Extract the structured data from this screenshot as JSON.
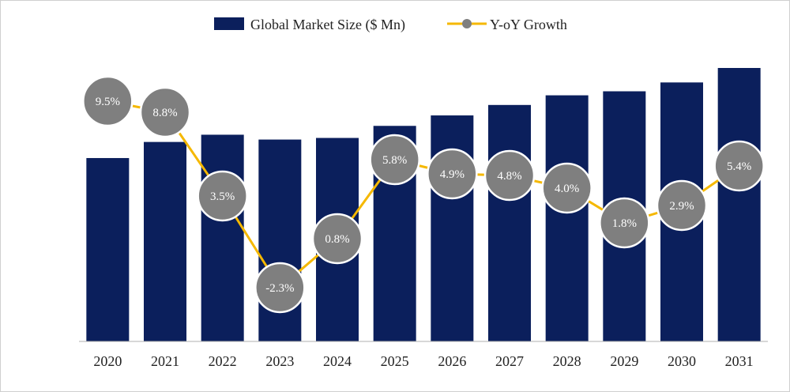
{
  "colors": {
    "bar": "#0b1f5c",
    "line": "#f5b800",
    "marker": "#7f7f7f",
    "marker_stroke": "#ffffff",
    "axis": "#b0b0b0"
  },
  "legend": [
    {
      "label": "Global Market Size ($ Mn)",
      "type": "bar"
    },
    {
      "label": "Y-oY Growth",
      "type": "line"
    }
  ],
  "chart_data": {
    "type": "bar",
    "categories": [
      "2020",
      "2021",
      "2022",
      "2023",
      "2024",
      "2025",
      "2026",
      "2027",
      "2028",
      "2029",
      "2030",
      "2031"
    ],
    "series": [
      {
        "name": "Global Market Size ($ Mn)",
        "type": "bar",
        "values": [
          228,
          248,
          257,
          251,
          253,
          268,
          281,
          294,
          306,
          311,
          322,
          340
        ]
      },
      {
        "name": "Y-oY Growth",
        "type": "line",
        "values": [
          9.5,
          8.8,
          3.5,
          -2.3,
          0.8,
          5.8,
          4.9,
          4.8,
          4.0,
          1.8,
          2.9,
          5.4
        ],
        "labels": [
          "9.5%",
          "8.8%",
          "3.5%",
          "-2.3%",
          "0.8%",
          "5.8%",
          "4.9%",
          "4.8%",
          "4.0%",
          "1.8%",
          "2.9%",
          "5.4%"
        ]
      }
    ],
    "bar_axis_range": [
      0,
      340
    ],
    "line_axis_range": [
      -3.5,
      11.0
    ],
    "grid": false,
    "legend_position": "top-center"
  }
}
